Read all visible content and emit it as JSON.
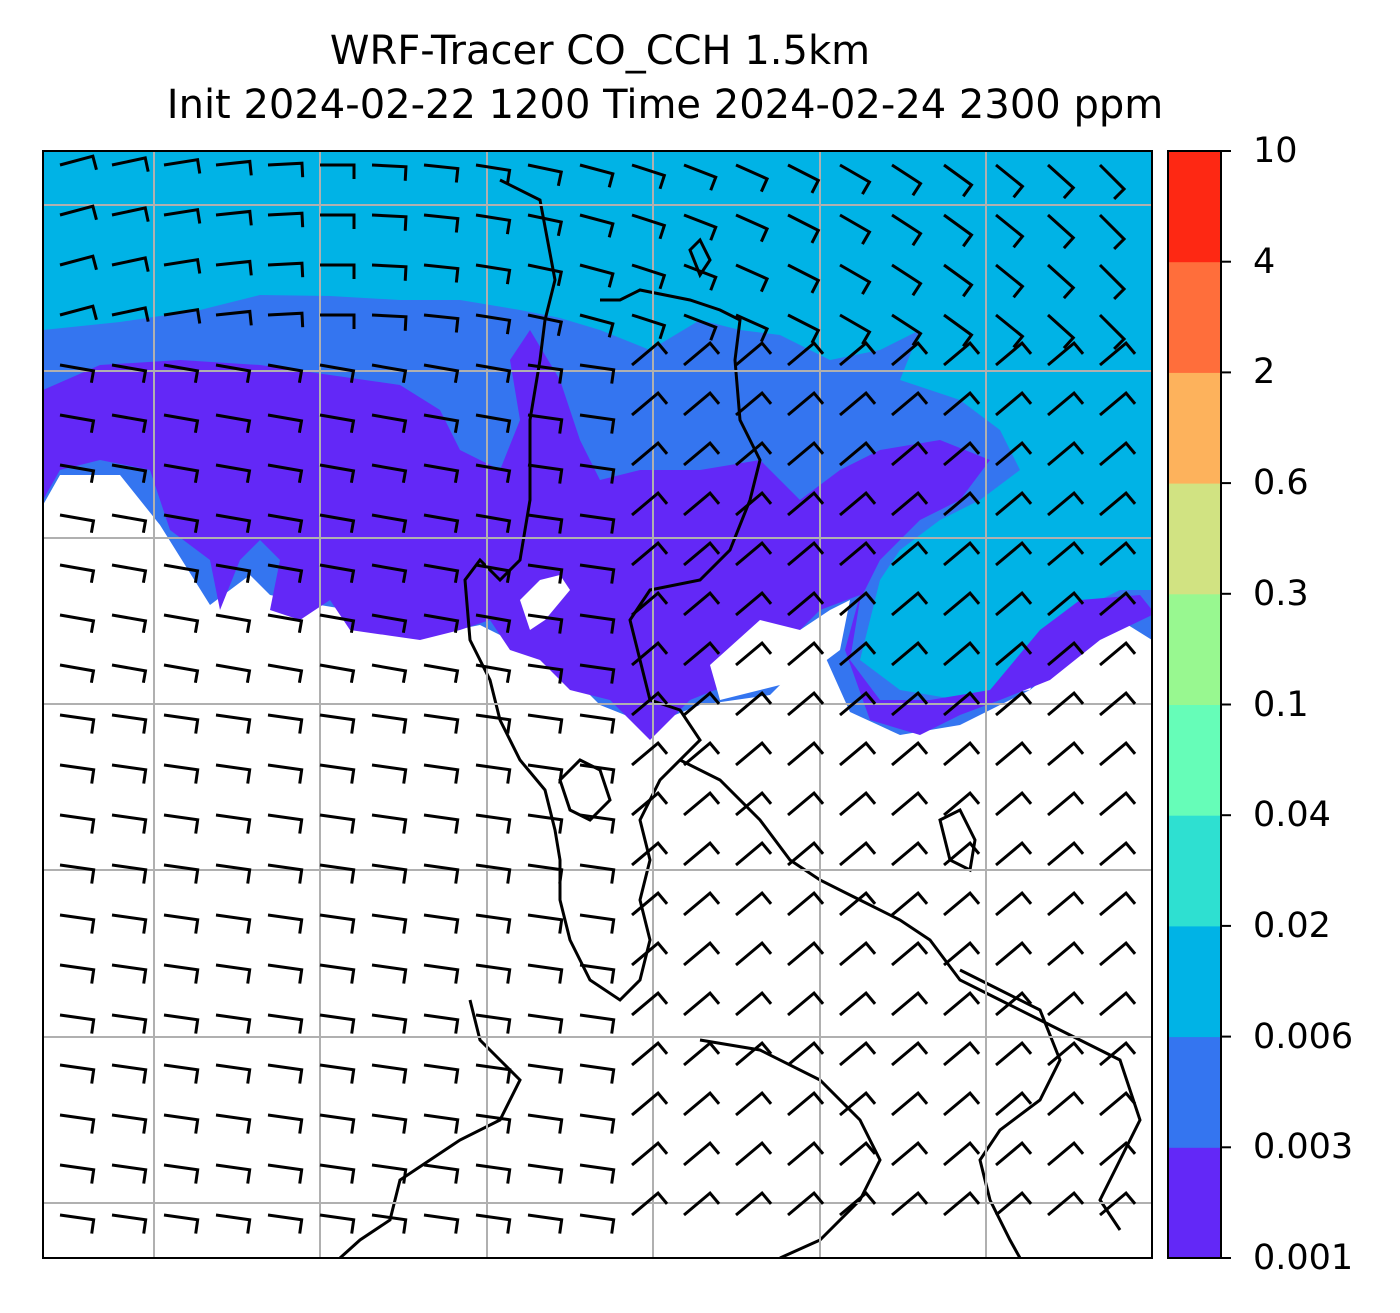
{
  "title": {
    "line1": "WRF-Tracer CO_CCH 1.5km",
    "line2": "Init 2024-02-22 1200 Time 2024-02-24 2300 ppm"
  },
  "colorbar": {
    "levels": [
      "0.001",
      "0.003",
      "0.006",
      "0.02",
      "0.04",
      "0.1",
      "0.3",
      "0.6",
      "2",
      "4",
      "10"
    ],
    "colors": [
      "#6328f7",
      "#3475f0",
      "#00b3e6",
      "#2ee0d1",
      "#66fdb8",
      "#98f890",
      "#d1e382",
      "#fdb25c",
      "#ff6e3b",
      "#fe2813"
    ]
  },
  "map": {
    "field": "CO_CCH tracer concentration",
    "units": "ppm",
    "gridlines": true,
    "wind_barbs": true
  }
}
